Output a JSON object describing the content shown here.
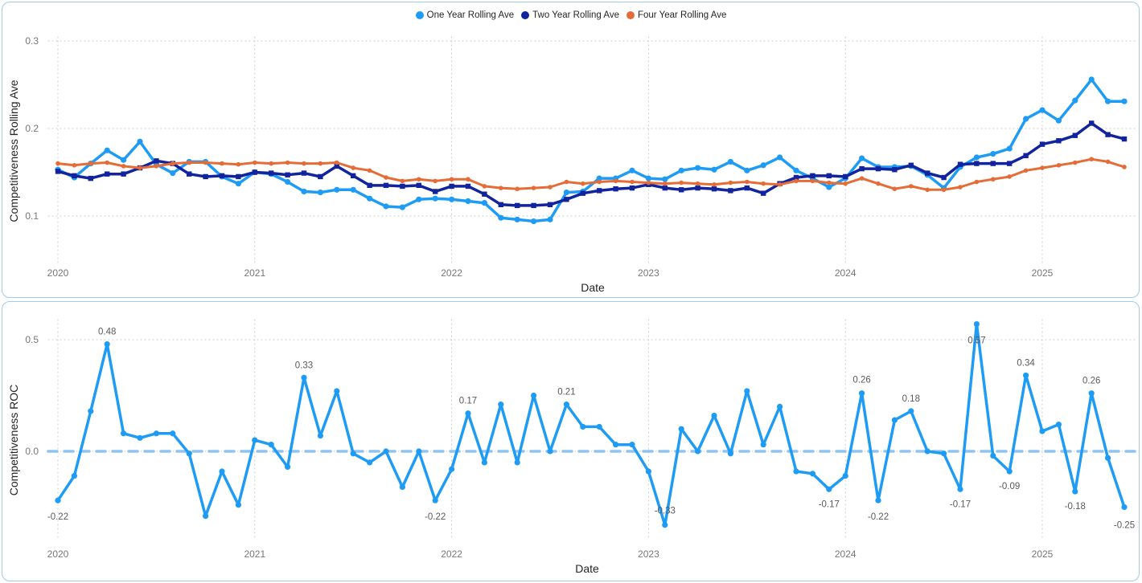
{
  "colors": {
    "card_border": "#9FCBEF",
    "grid": "#C8C8C8",
    "tick_text": "#767676",
    "axis_title_text": "#252423",
    "data_label_text": "#5A5A5A",
    "zero_line": "#8FC3F0",
    "one_year": "#1E9CF5",
    "two_year": "#12239E",
    "four_year": "#E66C37"
  },
  "legend": {
    "items": [
      {
        "label": "One Year Rolling Ave",
        "color": "#1E9CF5"
      },
      {
        "label": "Two Year Rolling Ave",
        "color": "#12239E"
      },
      {
        "label": "Four Year Rolling Ave",
        "color": "#E66C37"
      }
    ]
  },
  "chart_data": [
    {
      "id": "top",
      "type": "line",
      "title": "",
      "xlabel": "Date",
      "ylabel": "Competitiveness Rolling Ave",
      "x_start": "2020-01",
      "x_step": "month",
      "year_ticks": [
        "2020",
        "2021",
        "2022",
        "2023",
        "2024",
        "2025"
      ],
      "ytick_labels": [
        "0.1",
        "0.2",
        "0.3"
      ],
      "ylim": [
        0.07,
        0.31
      ],
      "grid": "dotted",
      "legend_position": "top-center",
      "series": [
        {
          "name": "One Year Rolling Ave",
          "color": "#1E9CF5",
          "marker": "circle",
          "values": [
            0.153,
            0.144,
            0.16,
            0.175,
            0.164,
            0.185,
            0.159,
            0.149,
            0.162,
            0.162,
            0.145,
            0.137,
            0.15,
            0.148,
            0.139,
            0.128,
            0.127,
            0.13,
            0.13,
            0.12,
            0.111,
            0.11,
            0.119,
            0.12,
            0.119,
            0.117,
            0.115,
            0.098,
            0.096,
            0.094,
            0.096,
            0.127,
            0.128,
            0.143,
            0.143,
            0.152,
            0.143,
            0.142,
            0.152,
            0.155,
            0.153,
            0.162,
            0.152,
            0.158,
            0.167,
            0.152,
            0.143,
            0.133,
            0.143,
            0.166,
            0.156,
            0.156,
            0.157,
            0.147,
            0.132,
            0.156,
            0.167,
            0.171,
            0.177,
            0.211,
            0.221,
            0.209,
            0.232,
            0.256,
            0.231,
            0.231
          ]
        },
        {
          "name": "Two Year Rolling Ave",
          "color": "#12239E",
          "marker": "square",
          "values": [
            0.151,
            0.146,
            0.143,
            0.148,
            0.148,
            0.155,
            0.163,
            0.16,
            0.148,
            0.145,
            0.146,
            0.145,
            0.15,
            0.149,
            0.147,
            0.149,
            0.145,
            0.157,
            0.146,
            0.135,
            0.135,
            0.134,
            0.135,
            0.128,
            0.134,
            0.134,
            0.125,
            0.113,
            0.112,
            0.112,
            0.113,
            0.119,
            0.126,
            0.129,
            0.131,
            0.132,
            0.136,
            0.132,
            0.13,
            0.132,
            0.131,
            0.129,
            0.132,
            0.126,
            0.137,
            0.144,
            0.146,
            0.146,
            0.145,
            0.154,
            0.154,
            0.153,
            0.158,
            0.149,
            0.144,
            0.159,
            0.16,
            0.16,
            0.16,
            0.169,
            0.182,
            0.186,
            0.192,
            0.206,
            0.193,
            0.188
          ]
        },
        {
          "name": "Four Year Rolling Ave",
          "color": "#E66C37",
          "marker": "circle",
          "values": [
            0.16,
            0.158,
            0.16,
            0.161,
            0.157,
            0.155,
            0.157,
            0.16,
            0.161,
            0.161,
            0.16,
            0.159,
            0.161,
            0.16,
            0.161,
            0.16,
            0.16,
            0.161,
            0.155,
            0.152,
            0.144,
            0.14,
            0.142,
            0.14,
            0.142,
            0.142,
            0.134,
            0.132,
            0.131,
            0.132,
            0.133,
            0.139,
            0.137,
            0.139,
            0.14,
            0.139,
            0.138,
            0.137,
            0.138,
            0.137,
            0.136,
            0.138,
            0.139,
            0.137,
            0.136,
            0.14,
            0.14,
            0.138,
            0.137,
            0.143,
            0.137,
            0.131,
            0.134,
            0.13,
            0.13,
            0.133,
            0.139,
            0.142,
            0.145,
            0.152,
            0.155,
            0.158,
            0.161,
            0.165,
            0.162,
            0.156
          ]
        }
      ]
    },
    {
      "id": "bottom",
      "type": "line",
      "title": "",
      "xlabel": "Date",
      "ylabel": "Competitiveness ROC",
      "x_start": "2020-01",
      "x_step": "month",
      "year_ticks": [
        "2020",
        "2021",
        "2022",
        "2023",
        "2024",
        "2025"
      ],
      "ytick_labels": [
        "0.0",
        "0.5"
      ],
      "ylim": [
        -0.4,
        0.6
      ],
      "grid": "dotted",
      "zero_reference_line": {
        "style": "dashed",
        "color": "#8FC3F0",
        "value": 0.0
      },
      "series": [
        {
          "name": "Competitiveness ROC",
          "color": "#1E9CF5",
          "marker": "circle",
          "values": [
            -0.22,
            -0.11,
            0.18,
            0.48,
            0.08,
            0.06,
            0.08,
            0.08,
            -0.01,
            -0.29,
            -0.09,
            -0.24,
            0.05,
            0.03,
            -0.07,
            0.33,
            0.07,
            0.27,
            -0.01,
            -0.05,
            0.0,
            -0.16,
            0.0,
            -0.22,
            -0.08,
            0.17,
            -0.05,
            0.21,
            -0.05,
            0.25,
            0.0,
            0.21,
            0.11,
            0.11,
            0.03,
            0.03,
            -0.09,
            -0.33,
            0.1,
            0.0,
            0.16,
            -0.01,
            0.27,
            0.03,
            0.2,
            -0.09,
            -0.1,
            -0.17,
            -0.11,
            0.26,
            -0.22,
            0.14,
            0.18,
            0.0,
            -0.01,
            -0.17,
            0.57,
            -0.02,
            -0.09,
            0.34,
            0.09,
            0.12,
            -0.18,
            0.26,
            -0.03,
            -0.25
          ]
        }
      ],
      "point_labels": [
        {
          "i": 0,
          "text": "-0.22",
          "dy": 24
        },
        {
          "i": 3,
          "text": "0.48",
          "dy": -12
        },
        {
          "i": 15,
          "text": "0.33",
          "dy": -12
        },
        {
          "i": 23,
          "text": "-0.22",
          "dy": 24
        },
        {
          "i": 25,
          "text": "0.17",
          "dy": -12
        },
        {
          "i": 31,
          "text": "0.21",
          "dy": -12
        },
        {
          "i": 37,
          "text": "-0.33",
          "dy": -14
        },
        {
          "i": 47,
          "text": "-0.17",
          "dy": 22
        },
        {
          "i": 49,
          "text": "0.26",
          "dy": -13
        },
        {
          "i": 50,
          "text": "-0.22",
          "dy": 24
        },
        {
          "i": 52,
          "text": "0.18",
          "dy": -12
        },
        {
          "i": 55,
          "text": "-0.17",
          "dy": 22
        },
        {
          "i": 56,
          "text": "0.57",
          "dy": 24
        },
        {
          "i": 58,
          "text": "-0.09",
          "dy": 22
        },
        {
          "i": 59,
          "text": "0.34",
          "dy": -12
        },
        {
          "i": 62,
          "text": "-0.18",
          "dy": 22
        },
        {
          "i": 63,
          "text": "0.26",
          "dy": -12
        },
        {
          "i": 65,
          "text": "-0.25",
          "dy": 26
        }
      ]
    }
  ]
}
